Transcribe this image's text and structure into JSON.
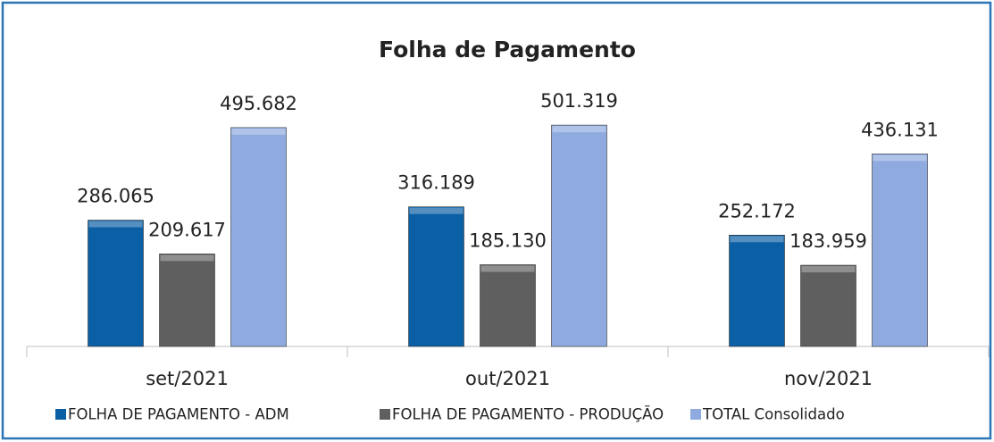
{
  "chart_data": {
    "type": "bar",
    "title": "Folha de Pagamento",
    "categories": [
      "set/2021",
      "out/2021",
      "nov/2021"
    ],
    "series": [
      {
        "name": "FOLHA DE PAGAMENTO - ADM",
        "color": "#0b5fa5",
        "values": [
          286.065,
          316.189,
          252.172
        ],
        "value_labels": [
          "286.065",
          "316.189",
          "252.172"
        ]
      },
      {
        "name": "FOLHA DE PAGAMENTO - PRODUÇÃO",
        "color": "#5f5f5f",
        "values": [
          209.617,
          185.13,
          183.959
        ],
        "value_labels": [
          "209.617",
          "185.130",
          "183.959"
        ]
      },
      {
        "name": "TOTAL Consolidado",
        "color": "#8eaadf",
        "values": [
          495.682,
          501.319,
          436.131
        ],
        "value_labels": [
          "495.682",
          "501.319",
          "436.131"
        ]
      }
    ],
    "legend": "bottom"
  }
}
